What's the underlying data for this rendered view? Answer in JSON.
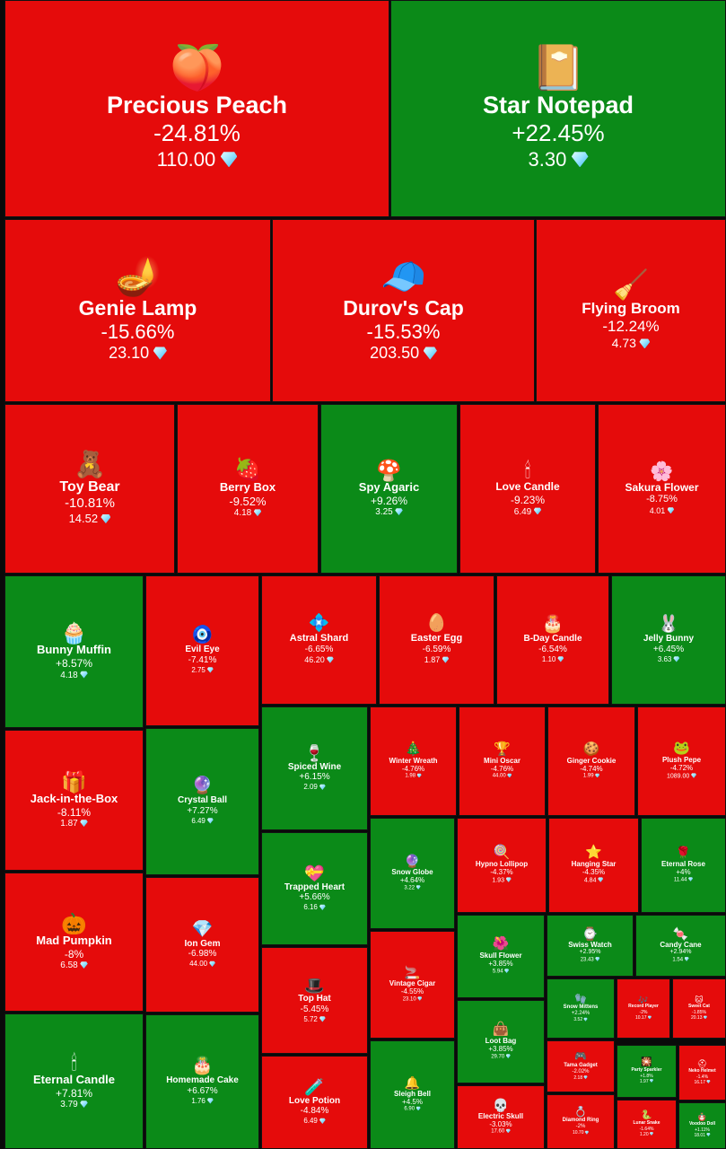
{
  "colors": {
    "up": "#0b8a18",
    "down": "#e50b0b"
  },
  "currency": "gem-icon",
  "chart_data": {
    "type": "treemap",
    "title": "",
    "items": [
      {
        "name": "Precious Peach",
        "change": "-24.81%",
        "price": "110.00",
        "value": 110.0,
        "pct": -24.81,
        "icon": "🍑"
      },
      {
        "name": "Star Notepad",
        "change": "+22.45%",
        "price": "3.30",
        "value": 3.3,
        "pct": 22.45,
        "icon": "📔"
      },
      {
        "name": "Genie Lamp",
        "change": "-15.66%",
        "price": "23.10",
        "value": 23.1,
        "pct": -15.66,
        "icon": "🪔"
      },
      {
        "name": "Durov's Cap",
        "change": "-15.53%",
        "price": "203.50",
        "value": 203.5,
        "pct": -15.53,
        "icon": "🧢"
      },
      {
        "name": "Flying Broom",
        "change": "-12.24%",
        "price": "4.73",
        "value": 4.73,
        "pct": -12.24,
        "icon": "🧹"
      },
      {
        "name": "Toy Bear",
        "change": "-10.81%",
        "price": "14.52",
        "value": 14.52,
        "pct": -10.81,
        "icon": "🧸"
      },
      {
        "name": "Berry Box",
        "change": "-9.52%",
        "price": "4.18",
        "value": 4.18,
        "pct": -9.52,
        "icon": "🍓"
      },
      {
        "name": "Spy Agaric",
        "change": "+9.26%",
        "price": "3.25",
        "value": 3.25,
        "pct": 9.26,
        "icon": "🍄"
      },
      {
        "name": "Love Candle",
        "change": "-9.23%",
        "price": "6.49",
        "value": 6.49,
        "pct": -9.23,
        "icon": "🕯"
      },
      {
        "name": "Sakura Flower",
        "change": "-8.75%",
        "price": "4.01",
        "value": 4.01,
        "pct": -8.75,
        "icon": "🌸"
      },
      {
        "name": "Bunny Muffin",
        "change": "+8.57%",
        "price": "4.18",
        "value": 4.18,
        "pct": 8.57,
        "icon": "🧁"
      },
      {
        "name": "Evil Eye",
        "change": "-7.41%",
        "price": "2.75",
        "value": 2.75,
        "pct": -7.41,
        "icon": "🧿"
      },
      {
        "name": "Astral Shard",
        "change": "-6.65%",
        "price": "46.20",
        "value": 46.2,
        "pct": -6.65,
        "icon": "💠"
      },
      {
        "name": "Easter Egg",
        "change": "-6.59%",
        "price": "1.87",
        "value": 1.87,
        "pct": -6.59,
        "icon": "🥚"
      },
      {
        "name": "B-Day Candle",
        "change": "-6.54%",
        "price": "1.10",
        "value": 1.1,
        "pct": -6.54,
        "icon": "🎂"
      },
      {
        "name": "Jelly Bunny",
        "change": "+6.45%",
        "price": "3.63",
        "value": 3.63,
        "pct": 6.45,
        "icon": "🐰"
      },
      {
        "name": "Jack-in-the-Box",
        "change": "-8.11%",
        "price": "1.87",
        "value": 1.87,
        "pct": -8.11,
        "icon": "🎁"
      },
      {
        "name": "Crystal Ball",
        "change": "+7.27%",
        "price": "6.49",
        "value": 6.49,
        "pct": 7.27,
        "icon": "🔮"
      },
      {
        "name": "Spiced Wine",
        "change": "+6.15%",
        "price": "2.09",
        "value": 2.09,
        "pct": 6.15,
        "icon": "🍷"
      },
      {
        "name": "Winter Wreath",
        "change": "-4.76%",
        "price": "1.98",
        "value": 1.98,
        "pct": -4.76,
        "icon": "🎄"
      },
      {
        "name": "Mini Oscar",
        "change": "-4.76%",
        "price": "44.00",
        "value": 44.0,
        "pct": -4.76,
        "icon": "🏆"
      },
      {
        "name": "Ginger Cookie",
        "change": "-4.74%",
        "price": "1.99",
        "value": 1.99,
        "pct": -4.74,
        "icon": "🍪"
      },
      {
        "name": "Plush Pepe",
        "change": "-4.72%",
        "price": "1089.00",
        "value": 1089.0,
        "pct": -4.72,
        "icon": "🐸"
      },
      {
        "name": "Mad Pumpkin",
        "change": "-8%",
        "price": "6.58",
        "value": 6.58,
        "pct": -8,
        "icon": "🎃"
      },
      {
        "name": "Ion Gem",
        "change": "-6.98%",
        "price": "44.00",
        "value": 44.0,
        "pct": -6.98,
        "icon": "💎"
      },
      {
        "name": "Trapped Heart",
        "change": "+5.66%",
        "price": "6.16",
        "value": 6.16,
        "pct": 5.66,
        "icon": "💝"
      },
      {
        "name": "Snow Globe",
        "change": "+4.64%",
        "price": "3.22",
        "value": 3.22,
        "pct": 4.64,
        "icon": "🔮"
      },
      {
        "name": "Hypno Lollipop",
        "change": "-4.37%",
        "price": "1.93",
        "value": 1.93,
        "pct": -4.37,
        "icon": "🍭"
      },
      {
        "name": "Hanging Star",
        "change": "-4.35%",
        "price": "4.84",
        "value": 4.84,
        "pct": -4.35,
        "icon": "⭐"
      },
      {
        "name": "Eternal Rose",
        "change": "+4%",
        "price": "11.44",
        "value": 11.44,
        "pct": 4,
        "icon": "🌹"
      },
      {
        "name": "Skull Flower",
        "change": "+3.85%",
        "price": "5.94",
        "value": 5.94,
        "pct": 3.85,
        "icon": "🌺"
      },
      {
        "name": "Swiss Watch",
        "change": "+2.95%",
        "price": "23.43",
        "value": 23.43,
        "pct": 2.95,
        "icon": "⌚"
      },
      {
        "name": "Candy Cane",
        "change": "+2.94%",
        "price": "1.54",
        "value": 1.54,
        "pct": 2.94,
        "icon": "🍬"
      },
      {
        "name": "Top Hat",
        "change": "-5.45%",
        "price": "5.72",
        "value": 5.72,
        "pct": -5.45,
        "icon": "🎩"
      },
      {
        "name": "Vintage Cigar",
        "change": "-4.55%",
        "price": "23.10",
        "value": 23.1,
        "pct": -4.55,
        "icon": "🚬"
      },
      {
        "name": "Loot Bag",
        "change": "+3.85%",
        "price": "29.70",
        "value": 29.7,
        "pct": 3.85,
        "icon": "👜"
      },
      {
        "name": "Snow Mittens",
        "change": "+2.24%",
        "price": "3.52",
        "value": 3.52,
        "pct": 2.24,
        "icon": "🧤"
      },
      {
        "name": "Record Player",
        "change": "-2%",
        "price": "10.17",
        "value": 10.17,
        "pct": -2,
        "icon": "🎶"
      },
      {
        "name": "Sweet Cat",
        "change": "-1.85%",
        "price": "20.13",
        "value": 20.13,
        "pct": -1.85,
        "icon": "🐱"
      },
      {
        "name": "Eternal Candle",
        "change": "+7.81%",
        "price": "3.79",
        "value": 3.79,
        "pct": 7.81,
        "icon": "🕯"
      },
      {
        "name": "Homemade Cake",
        "change": "+6.67%",
        "price": "1.76",
        "value": 1.76,
        "pct": 6.67,
        "icon": "🎂"
      },
      {
        "name": "Love Potion",
        "change": "-4.84%",
        "price": "6.49",
        "value": 6.49,
        "pct": -4.84,
        "icon": "🧪"
      },
      {
        "name": "Sleigh Bell",
        "change": "+4.5%",
        "price": "6.90",
        "value": 6.9,
        "pct": 4.5,
        "icon": "🔔"
      },
      {
        "name": "Electric Skull",
        "change": "-3.03%",
        "price": "17.60",
        "value": 17.6,
        "pct": -3.03,
        "icon": "💀"
      },
      {
        "name": "Tama Gadget",
        "change": "-2.02%",
        "price": "2.18",
        "value": 2.18,
        "pct": -2.02,
        "icon": "🎮"
      },
      {
        "name": "Diamond Ring",
        "change": "-2%",
        "price": "10.70",
        "value": 10.7,
        "pct": -2,
        "icon": "💍"
      },
      {
        "name": "Party Sparkler",
        "change": "+1.8%",
        "price": "1.97",
        "value": 1.97,
        "pct": 1.8,
        "icon": "🎇"
      },
      {
        "name": "Lunar Snake",
        "change": "-1.64%",
        "price": "1.20",
        "value": 1.2,
        "pct": -1.64,
        "icon": "🐍"
      },
      {
        "name": "Neko Helmet",
        "change": "-1.4%",
        "price": "16.17",
        "value": 16.17,
        "pct": -1.4,
        "icon": "⛑"
      },
      {
        "name": "Voodoo Doll",
        "change": "+1.11%",
        "price": "18.01",
        "value": 18.01,
        "pct": 1.11,
        "icon": "🪆"
      }
    ]
  }
}
